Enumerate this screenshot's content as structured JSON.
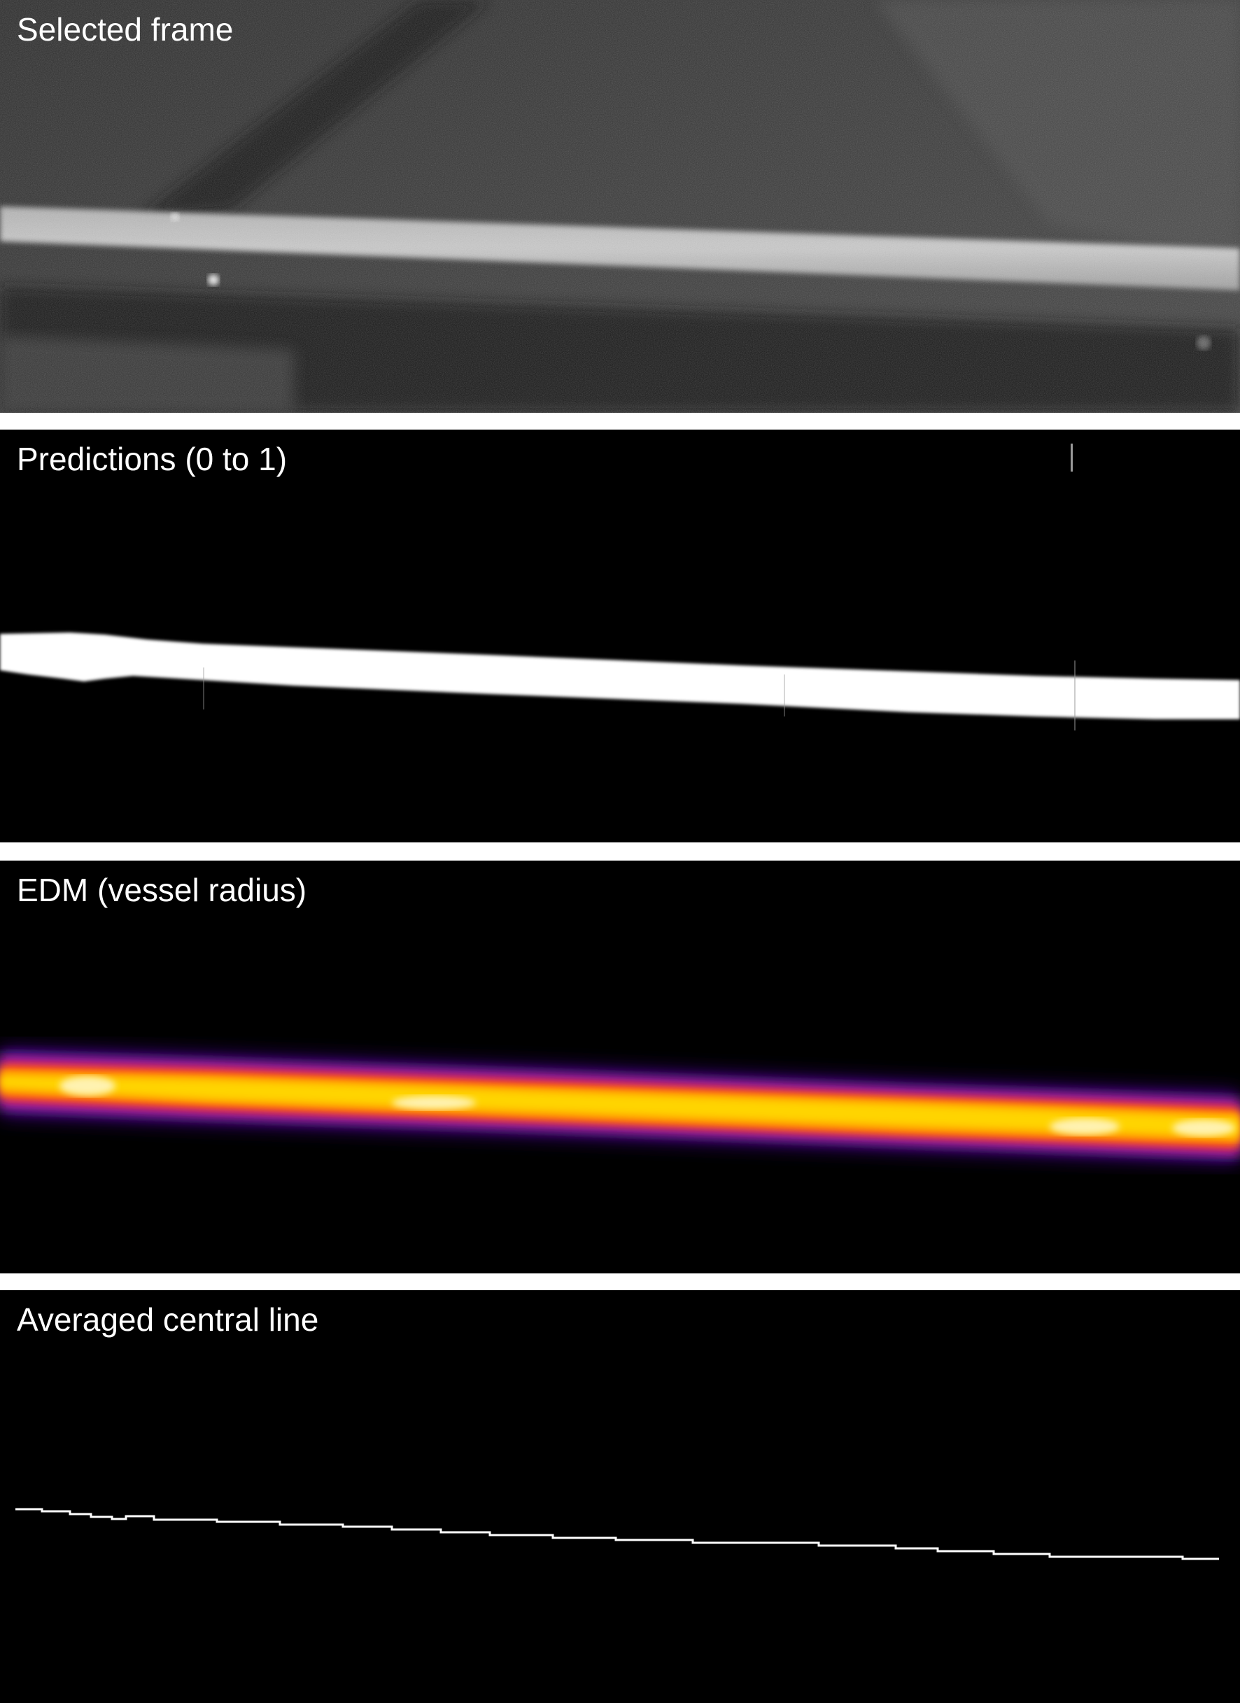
{
  "panels": [
    {
      "id": "selected-frame",
      "label": "Selected frame",
      "style": "grayscale-microscopy"
    },
    {
      "id": "predictions",
      "label": "Predictions (0 to 1)",
      "style": "binary-mask"
    },
    {
      "id": "edm",
      "label": "EDM (vessel radius)",
      "style": "heatmap",
      "colormap": [
        "#000000",
        "#3a0a7a",
        "#8a1fd0",
        "#ff2a1e",
        "#ff9400",
        "#ffd400",
        "#fff2b0"
      ]
    },
    {
      "id": "central-line",
      "label": "Averaged central line",
      "style": "thin-white-line"
    }
  ]
}
